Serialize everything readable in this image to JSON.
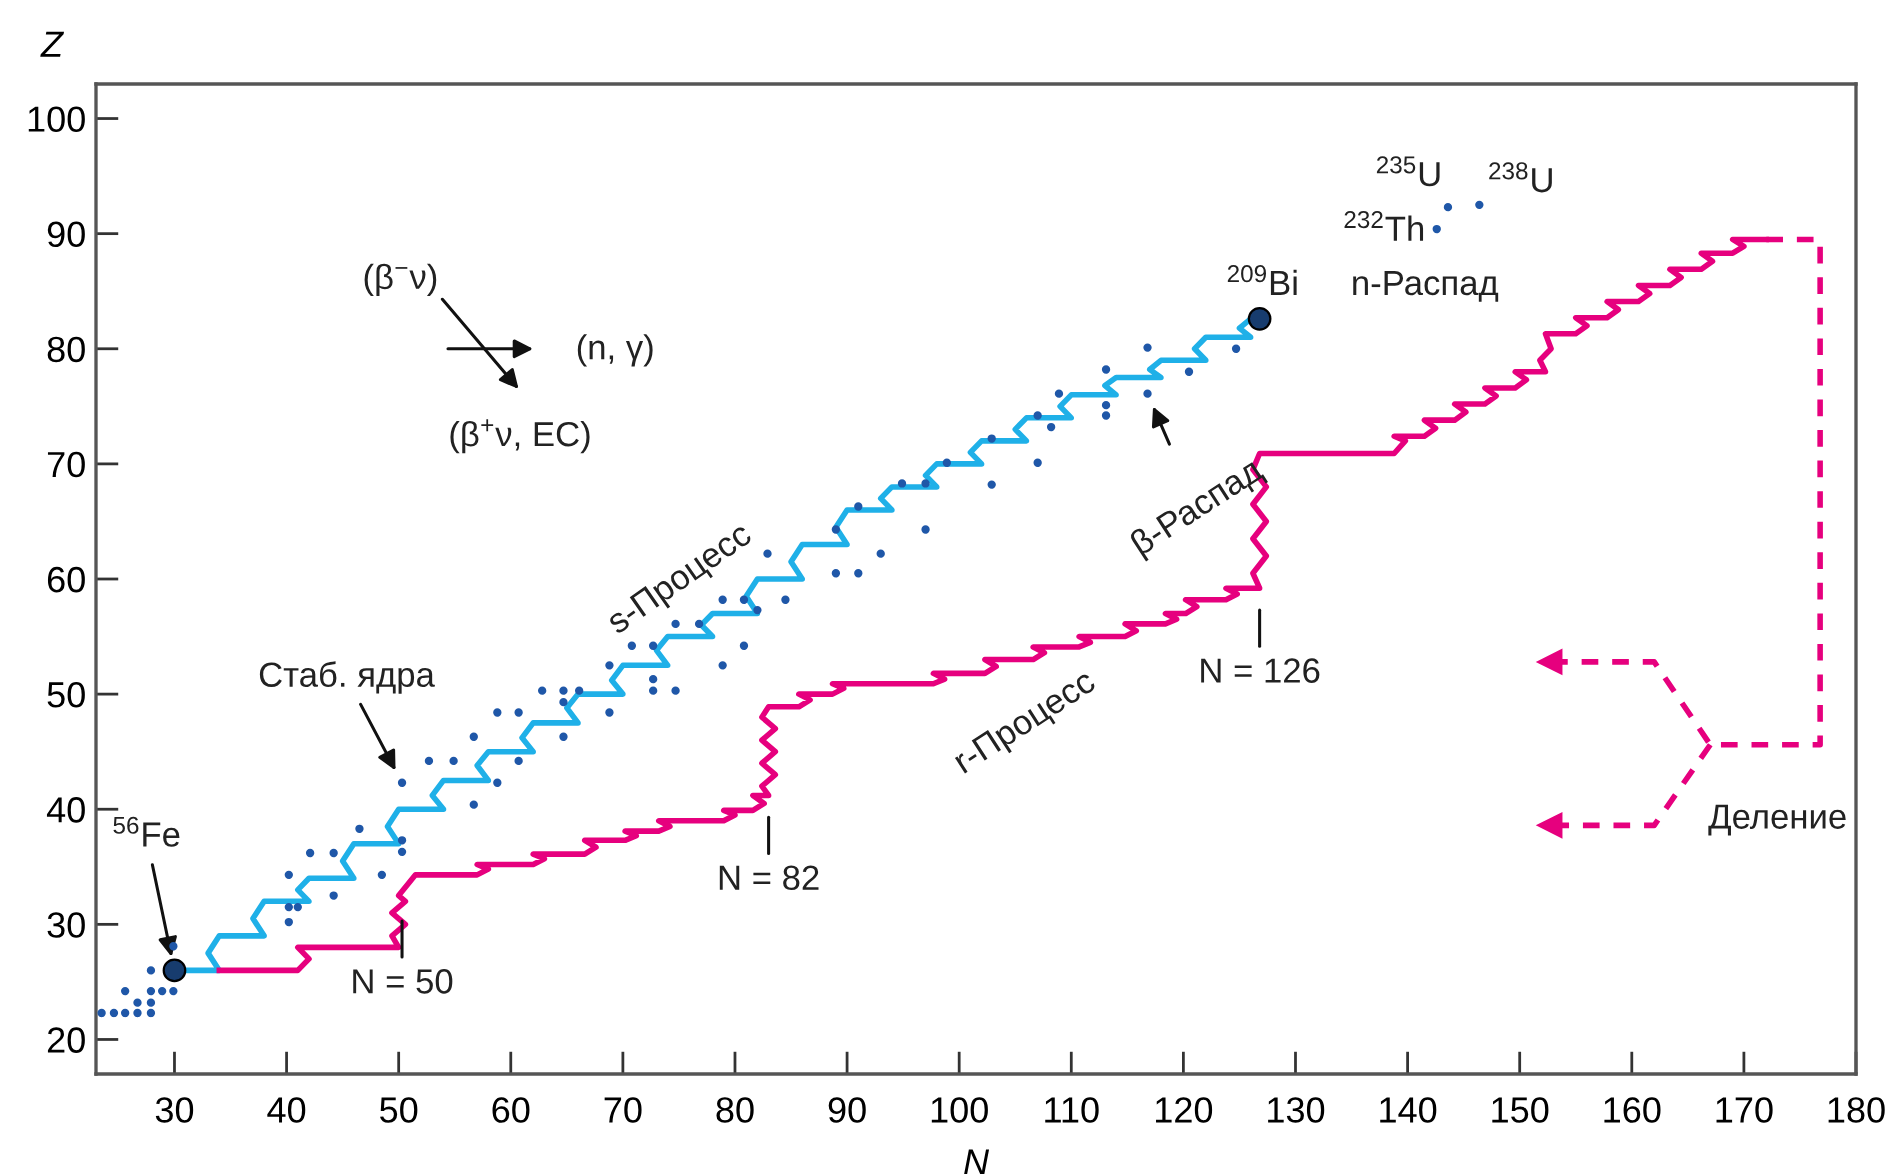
{
  "chart_data": {
    "type": "line",
    "xlabel": "N",
    "ylabel": "Z",
    "xlim": [
      23,
      180
    ],
    "xticks": [
      30,
      40,
      50,
      60,
      70,
      80,
      90,
      100,
      110,
      120,
      130,
      140,
      150,
      160,
      170,
      180
    ],
    "ylim": [
      17,
      103
    ],
    "yticks": [
      20,
      30,
      40,
      50,
      60,
      70,
      80,
      90,
      100
    ],
    "grid": false,
    "legend": false,
    "series": [
      {
        "color": "#1fb0e8",
        "x": [
          30,
          34,
          33,
          34,
          38,
          37,
          38,
          42,
          41,
          42,
          46,
          45,
          46,
          50,
          49,
          50,
          54,
          53,
          54,
          58,
          57,
          58,
          62,
          61,
          62,
          66,
          65,
          66,
          70,
          69,
          70,
          74,
          73,
          74,
          78,
          77,
          78,
          82,
          81,
          82,
          86,
          85,
          86,
          90,
          89,
          90,
          94,
          93,
          94,
          98,
          97,
          98,
          102,
          101,
          102,
          106,
          105,
          106,
          110,
          109,
          110,
          114,
          113,
          114,
          118,
          117,
          118,
          122,
          121,
          122,
          126,
          125,
          126
        ],
        "values": [
          26,
          26,
          27.5,
          29,
          29,
          30.5,
          32,
          32,
          33,
          34,
          34,
          35.5,
          37,
          37,
          38.5,
          40,
          40,
          41.2,
          42.5,
          42.5,
          43.8,
          45,
          45,
          46.2,
          47.5,
          47.5,
          48.8,
          50,
          50,
          51.2,
          52.5,
          52.5,
          53.8,
          55,
          55,
          56,
          57,
          57,
          58.5,
          60,
          60,
          61.5,
          63,
          63,
          64.5,
          66,
          66,
          67,
          68,
          68,
          69,
          70,
          70,
          71,
          72,
          72,
          73,
          74,
          74,
          75,
          76,
          76,
          76.8,
          77.5,
          77.5,
          78.2,
          79,
          79,
          80,
          81,
          81,
          81.8,
          82.6
        ]
      },
      {
        "color": "#e6007e",
        "x": [
          34,
          41,
          42,
          41,
          50,
          49.4,
          50.6,
          49.4,
          50.6,
          50,
          51.5,
          57,
          58,
          57,
          62,
          63,
          62,
          66.6,
          67.6,
          66.6,
          70.2,
          71.2,
          70.2,
          73.2,
          74.2,
          73.2,
          79,
          80,
          79,
          81.6,
          82.6,
          81.6,
          83,
          82.4,
          83.6,
          82.4,
          83.6,
          82.4,
          83.6,
          82.4,
          83,
          85.7,
          86.7,
          85.7,
          88.7,
          89.7,
          88.7,
          97.7,
          98.7,
          97.7,
          102.3,
          103.3,
          102.3,
          106.6,
          107.6,
          106.6,
          110.7,
          111.7,
          110.7,
          114.8,
          115.8,
          114.8,
          118.4,
          119.4,
          118.4,
          120.2,
          121.2,
          120.2,
          123.8,
          124.8,
          123.8,
          126.8,
          126.2,
          127.4,
          126.2,
          127.4,
          126.2,
          127.4,
          126.2,
          126.8,
          138.8,
          139.8,
          138.8,
          141.5,
          142.5,
          141.5,
          144.2,
          145.2,
          144.2,
          146.9,
          147.9,
          146.9,
          149.6,
          150.6,
          149.6,
          152.3,
          151.8,
          152.8,
          152.3,
          155,
          156,
          155,
          157.8,
          158.8,
          157.8,
          160.6,
          161.6,
          160.6,
          163.4,
          164.4,
          163.4,
          166.2,
          167.2,
          166.2,
          169,
          170,
          169,
          172
        ],
        "values": [
          26,
          26,
          27,
          28,
          28,
          29,
          30,
          31,
          32,
          32.5,
          34.3,
          34.3,
          34.8,
          35.2,
          35.2,
          35.7,
          36.1,
          36.1,
          36.7,
          37.3,
          37.3,
          37.7,
          38.1,
          38.1,
          38.5,
          39,
          39,
          39.5,
          39.9,
          39.9,
          40.5,
          41.2,
          41.2,
          42,
          43,
          44,
          45,
          46,
          47,
          48,
          48.9,
          48.9,
          49.5,
          50,
          50,
          50.5,
          50.9,
          50.9,
          51.3,
          51.8,
          51.8,
          52.4,
          53,
          53,
          53.6,
          54.1,
          54.1,
          54.5,
          55,
          55,
          55.5,
          56.1,
          56.1,
          56.5,
          57,
          57,
          57.6,
          58.2,
          58.2,
          58.7,
          59.2,
          59.2,
          60.5,
          62,
          63.5,
          65,
          66.5,
          68,
          69.5,
          70.9,
          70.9,
          72,
          72.4,
          72.4,
          73.1,
          73.8,
          73.8,
          74.5,
          75.2,
          75.2,
          75.9,
          76.6,
          76.6,
          77.3,
          78,
          78,
          79,
          80,
          81.3,
          81.3,
          82,
          82.7,
          82.7,
          83.4,
          84.1,
          84.1,
          84.8,
          85.5,
          85.5,
          86.2,
          86.9,
          86.9,
          87.6,
          88.3,
          88.3,
          88.9,
          89.5,
          89.5
        ]
      },
      {
        "color": "#e6007e",
        "line_style": "dashed",
        "x": [
          172,
          176.8,
          176.8,
          167,
          162,
          152.7
        ],
        "values": [
          89.5,
          89.5,
          45.6,
          45.6,
          52.8,
          52.8
        ]
      },
      {
        "color": "#e6007e",
        "line_style": "dashed",
        "x": [
          167,
          162,
          152.7
        ],
        "values": [
          45.6,
          38.6,
          38.6
        ]
      },
      {
        "type": "scatter",
        "color": "#1f57a8",
        "x": [
          23.5,
          24.6,
          25.6,
          26.7,
          27.9,
          26.7,
          27.9,
          25.6,
          27.9,
          28.9,
          29.9,
          27.9,
          29.9,
          40.2,
          40.2,
          41,
          40.2,
          42.1,
          44.2,
          44.2,
          46.5,
          48.5,
          50.3,
          50.3,
          50.3,
          52.7,
          54.9,
          58.8,
          60.7,
          56.7,
          56.7,
          64.7,
          58.8,
          60.7,
          68.8,
          62.8,
          64.7,
          66.1,
          64.7,
          68.8,
          70.8,
          72.7,
          72.7,
          72.7,
          74.7,
          74.7,
          76.8,
          78.9,
          80.8,
          78.9,
          80.8,
          82,
          84.5,
          82.9,
          89,
          91,
          89,
          91,
          93,
          94.9,
          97,
          97,
          98.9,
          102.9,
          102.9,
          107,
          107,
          108.2,
          108.9,
          113.1,
          113.1,
          113.1,
          116.8,
          116.8,
          120.5,
          124.7,
          142.6,
          143.6,
          146.4
        ],
        "values": [
          22.3,
          22.3,
          22.3,
          22.3,
          22.3,
          23.2,
          23.2,
          24.2,
          24.2,
          24.2,
          24.2,
          26,
          28.1,
          30.2,
          31.5,
          31.5,
          34.3,
          36.2,
          36.2,
          32.5,
          38.3,
          34.3,
          37.3,
          36.3,
          42.3,
          44.2,
          44.2,
          42.3,
          44.2,
          40.4,
          46.3,
          46.3,
          48.4,
          48.4,
          48.4,
          50.3,
          50.3,
          50.3,
          49.3,
          52.5,
          54.2,
          54.2,
          51.3,
          50.3,
          50.3,
          56.1,
          56.1,
          52.5,
          54.2,
          58.2,
          58.2,
          57.3,
          58.2,
          62.2,
          60.5,
          60.5,
          64.3,
          66.3,
          62.2,
          68.3,
          68.3,
          64.3,
          70.1,
          72.2,
          68.2,
          74.2,
          70.1,
          73.2,
          76.1,
          78.2,
          75.1,
          74.2,
          80.1,
          76.1,
          78,
          80,
          90.4,
          92.3,
          92.5
        ]
      },
      {
        "type": "bubble",
        "color": "#173c6e",
        "x": [
          30,
          126.8
        ],
        "values": [
          26,
          82.6
        ],
        "sizes": [
          1,
          1
        ]
      }
    ],
    "annotations": [
      {
        "text": "$^{56}$Fe",
        "x": 30,
        "y": 26
      },
      {
        "text": "$^{209}$Bi",
        "x": 126.8,
        "y": 82.6
      },
      {
        "text": "$^{232}$Th",
        "x": 142.6,
        "y": 90.4
      },
      {
        "text": "$^{235}$U",
        "x": 143.6,
        "y": 92.3
      },
      {
        "text": "$^{238}$U",
        "x": 146.4,
        "y": 92.5
      },
      {
        "text": "Стаб. ядра",
        "x": 50.3,
        "y": 42.3
      },
      {
        "text": "β-Распад",
        "x": 116.8,
        "y": 76.1
      },
      {
        "text": "N = 50",
        "x": 50.3,
        "y": 31.5
      },
      {
        "text": "N = 82",
        "x": 83,
        "y": 40.5
      },
      {
        "text": "N = 126",
        "x": 126.8,
        "y": 58.5
      },
      "s-Процесс",
      "r-Процесс",
      "n-Распад",
      "Деление",
      "(β$^{−}$ν)",
      "(n, γ)",
      "(β$^{+}$ν, EC)"
    ]
  }
}
